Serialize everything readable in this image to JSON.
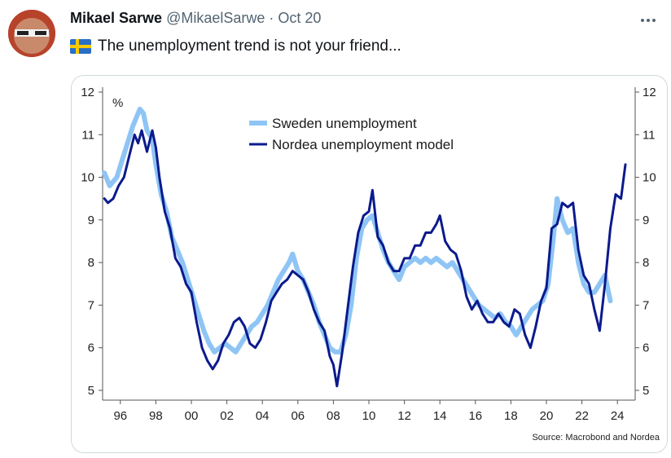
{
  "tweet": {
    "author_name": "Mikael Sarwe",
    "handle": "@MikaelSarwe",
    "separator": "·",
    "date": "Oct 20",
    "text": "The unemployment trend is not your friend...",
    "flag_icon": "sweden-flag-icon",
    "more_icon": "more-options-icon"
  },
  "chart_data": {
    "type": "line",
    "unit_label": "%",
    "ylim": [
      5,
      12
    ],
    "yticks": [
      "5",
      "6",
      "7",
      "8",
      "9",
      "10",
      "11",
      "12"
    ],
    "xlim": [
      1995.0,
      2025.0
    ],
    "xticks": [
      "96",
      "98",
      "00",
      "02",
      "04",
      "06",
      "08",
      "10",
      "12",
      "14",
      "16",
      "18",
      "20",
      "22",
      "24"
    ],
    "xtick_years": [
      1996,
      1998,
      2000,
      2002,
      2004,
      2006,
      2008,
      2010,
      2012,
      2014,
      2016,
      2018,
      2020,
      2022,
      2024
    ],
    "legend_position": "top-center",
    "source": "Source: Macrobond and Nordea",
    "series": [
      {
        "name": "Sweden unemployment",
        "color": "#8ec5f5",
        "points": [
          [
            1995.1,
            10.1
          ],
          [
            1995.4,
            9.8
          ],
          [
            1995.8,
            10.0
          ],
          [
            1996.1,
            10.4
          ],
          [
            1996.4,
            10.8
          ],
          [
            1996.7,
            11.2
          ],
          [
            1996.9,
            11.4
          ],
          [
            1997.1,
            11.6
          ],
          [
            1997.3,
            11.5
          ],
          [
            1997.5,
            11.1
          ],
          [
            1997.8,
            10.9
          ],
          [
            1998.0,
            10.3
          ],
          [
            1998.3,
            9.6
          ],
          [
            1998.6,
            9.2
          ],
          [
            1998.9,
            8.6
          ],
          [
            1999.2,
            8.3
          ],
          [
            1999.5,
            8.0
          ],
          [
            1999.8,
            7.6
          ],
          [
            2000.1,
            7.2
          ],
          [
            2000.4,
            6.8
          ],
          [
            2000.7,
            6.4
          ],
          [
            2001.0,
            6.1
          ],
          [
            2001.3,
            5.9
          ],
          [
            2001.6,
            6.0
          ],
          [
            2001.9,
            6.1
          ],
          [
            2002.2,
            6.0
          ],
          [
            2002.5,
            5.9
          ],
          [
            2002.8,
            6.1
          ],
          [
            2003.1,
            6.3
          ],
          [
            2003.4,
            6.5
          ],
          [
            2003.7,
            6.6
          ],
          [
            2004.0,
            6.8
          ],
          [
            2004.3,
            7.0
          ],
          [
            2004.6,
            7.3
          ],
          [
            2004.9,
            7.6
          ],
          [
            2005.2,
            7.8
          ],
          [
            2005.5,
            8.0
          ],
          [
            2005.7,
            8.2
          ],
          [
            2006.0,
            7.8
          ],
          [
            2006.3,
            7.6
          ],
          [
            2006.6,
            7.3
          ],
          [
            2006.9,
            7.0
          ],
          [
            2007.2,
            6.6
          ],
          [
            2007.5,
            6.3
          ],
          [
            2007.8,
            6.0
          ],
          [
            2008.1,
            5.9
          ],
          [
            2008.4,
            5.9
          ],
          [
            2008.7,
            6.3
          ],
          [
            2009.0,
            7.0
          ],
          [
            2009.3,
            8.1
          ],
          [
            2009.6,
            8.8
          ],
          [
            2009.9,
            9.0
          ],
          [
            2010.2,
            9.1
          ],
          [
            2010.5,
            8.7
          ],
          [
            2010.8,
            8.3
          ],
          [
            2011.1,
            8.0
          ],
          [
            2011.4,
            7.8
          ],
          [
            2011.7,
            7.6
          ],
          [
            2012.0,
            7.9
          ],
          [
            2012.3,
            8.0
          ],
          [
            2012.6,
            8.1
          ],
          [
            2012.9,
            8.0
          ],
          [
            2013.2,
            8.1
          ],
          [
            2013.5,
            8.0
          ],
          [
            2013.8,
            8.1
          ],
          [
            2014.1,
            8.0
          ],
          [
            2014.4,
            7.9
          ],
          [
            2014.7,
            8.0
          ],
          [
            2015.0,
            7.8
          ],
          [
            2015.3,
            7.6
          ],
          [
            2015.6,
            7.4
          ],
          [
            2015.9,
            7.2
          ],
          [
            2016.2,
            7.0
          ],
          [
            2016.5,
            6.9
          ],
          [
            2016.8,
            6.8
          ],
          [
            2017.1,
            6.7
          ],
          [
            2017.4,
            6.8
          ],
          [
            2017.7,
            6.6
          ],
          [
            2018.0,
            6.5
          ],
          [
            2018.3,
            6.3
          ],
          [
            2018.6,
            6.5
          ],
          [
            2018.9,
            6.7
          ],
          [
            2019.2,
            6.9
          ],
          [
            2019.5,
            7.0
          ],
          [
            2019.8,
            7.1
          ],
          [
            2020.1,
            7.5
          ],
          [
            2020.4,
            8.6
          ],
          [
            2020.6,
            9.5
          ],
          [
            2020.9,
            9.0
          ],
          [
            2021.2,
            8.7
          ],
          [
            2021.5,
            8.8
          ],
          [
            2021.8,
            8.0
          ],
          [
            2022.1,
            7.5
          ],
          [
            2022.4,
            7.3
          ],
          [
            2022.7,
            7.3
          ],
          [
            2023.0,
            7.5
          ],
          [
            2023.3,
            7.7
          ],
          [
            2023.6,
            7.1
          ]
        ]
      },
      {
        "name": "Nordea unemployment model",
        "color": "#0b1a8c",
        "points": [
          [
            1995.1,
            9.5
          ],
          [
            1995.3,
            9.4
          ],
          [
            1995.6,
            9.5
          ],
          [
            1995.9,
            9.8
          ],
          [
            1996.2,
            10.0
          ],
          [
            1996.5,
            10.5
          ],
          [
            1996.8,
            11.0
          ],
          [
            1997.0,
            10.8
          ],
          [
            1997.2,
            11.1
          ],
          [
            1997.5,
            10.6
          ],
          [
            1997.8,
            11.1
          ],
          [
            1998.0,
            10.7
          ],
          [
            1998.2,
            10.0
          ],
          [
            1998.5,
            9.2
          ],
          [
            1998.8,
            8.8
          ],
          [
            1999.1,
            8.1
          ],
          [
            1999.4,
            7.9
          ],
          [
            1999.7,
            7.5
          ],
          [
            2000.0,
            7.3
          ],
          [
            2000.3,
            6.6
          ],
          [
            2000.6,
            6.0
          ],
          [
            2000.9,
            5.7
          ],
          [
            2001.2,
            5.5
          ],
          [
            2001.5,
            5.7
          ],
          [
            2001.8,
            6.1
          ],
          [
            2002.1,
            6.3
          ],
          [
            2002.4,
            6.6
          ],
          [
            2002.7,
            6.7
          ],
          [
            2003.0,
            6.5
          ],
          [
            2003.3,
            6.1
          ],
          [
            2003.6,
            6.0
          ],
          [
            2003.9,
            6.2
          ],
          [
            2004.2,
            6.6
          ],
          [
            2004.5,
            7.1
          ],
          [
            2004.8,
            7.3
          ],
          [
            2005.1,
            7.5
          ],
          [
            2005.4,
            7.6
          ],
          [
            2005.7,
            7.8
          ],
          [
            2006.0,
            7.7
          ],
          [
            2006.3,
            7.6
          ],
          [
            2006.6,
            7.3
          ],
          [
            2006.9,
            6.9
          ],
          [
            2007.2,
            6.6
          ],
          [
            2007.5,
            6.4
          ],
          [
            2007.8,
            5.8
          ],
          [
            2008.0,
            5.6
          ],
          [
            2008.2,
            5.1
          ],
          [
            2008.5,
            5.9
          ],
          [
            2008.8,
            6.9
          ],
          [
            2009.1,
            7.9
          ],
          [
            2009.4,
            8.7
          ],
          [
            2009.7,
            9.1
          ],
          [
            2010.0,
            9.2
          ],
          [
            2010.2,
            9.7
          ],
          [
            2010.5,
            8.6
          ],
          [
            2010.8,
            8.4
          ],
          [
            2011.1,
            8.0
          ],
          [
            2011.4,
            7.8
          ],
          [
            2011.7,
            7.8
          ],
          [
            2012.0,
            8.1
          ],
          [
            2012.3,
            8.1
          ],
          [
            2012.6,
            8.4
          ],
          [
            2012.9,
            8.4
          ],
          [
            2013.2,
            8.7
          ],
          [
            2013.5,
            8.7
          ],
          [
            2013.8,
            8.9
          ],
          [
            2014.0,
            9.1
          ],
          [
            2014.3,
            8.5
          ],
          [
            2014.6,
            8.3
          ],
          [
            2014.9,
            8.2
          ],
          [
            2015.2,
            7.8
          ],
          [
            2015.5,
            7.2
          ],
          [
            2015.8,
            6.9
          ],
          [
            2016.1,
            7.1
          ],
          [
            2016.4,
            6.8
          ],
          [
            2016.7,
            6.6
          ],
          [
            2017.0,
            6.6
          ],
          [
            2017.3,
            6.8
          ],
          [
            2017.6,
            6.6
          ],
          [
            2017.9,
            6.5
          ],
          [
            2018.2,
            6.9
          ],
          [
            2018.5,
            6.8
          ],
          [
            2018.8,
            6.3
          ],
          [
            2019.1,
            6.0
          ],
          [
            2019.4,
            6.5
          ],
          [
            2019.7,
            7.1
          ],
          [
            2020.0,
            7.4
          ],
          [
            2020.3,
            8.8
          ],
          [
            2020.6,
            8.9
          ],
          [
            2020.9,
            9.4
          ],
          [
            2021.2,
            9.3
          ],
          [
            2021.5,
            9.4
          ],
          [
            2021.8,
            8.3
          ],
          [
            2022.1,
            7.7
          ],
          [
            2022.4,
            7.5
          ],
          [
            2022.7,
            6.9
          ],
          [
            2023.0,
            6.4
          ],
          [
            2023.3,
            7.5
          ],
          [
            2023.6,
            8.8
          ],
          [
            2023.9,
            9.6
          ],
          [
            2024.2,
            9.5
          ],
          [
            2024.45,
            10.3
          ]
        ]
      }
    ]
  }
}
